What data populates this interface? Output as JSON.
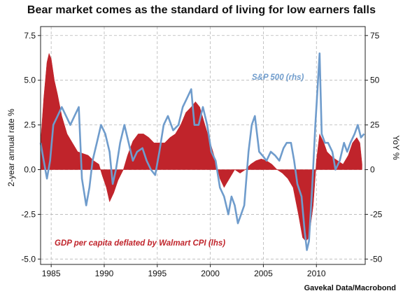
{
  "title": "Bear market comes as the standard of living for low earners falls",
  "source": "Gavekal Data/Macrobond",
  "chart_data": {
    "type": "area",
    "x_ticks": [
      "1985",
      "1990",
      "1995",
      "2000",
      "2005",
      "2010"
    ],
    "x_tick_values": [
      1985,
      1990,
      1995,
      2000,
      2005,
      2010
    ],
    "xlim": [
      1984,
      2014.6
    ],
    "left_axis": {
      "label": "2-year annual rate %",
      "ylim": [
        -5.3,
        8.0
      ],
      "ticks": [
        "7.5",
        "5.0",
        "2.5",
        "0.0",
        "-2.5",
        "-5.0"
      ],
      "tick_values": [
        7.5,
        5.0,
        2.5,
        0.0,
        -2.5,
        -5.0
      ]
    },
    "right_axis": {
      "label": "YoY %",
      "ylim": [
        -53,
        80
      ],
      "ticks": [
        "75",
        "50",
        "25",
        "0",
        "-25",
        "-50"
      ],
      "tick_values": [
        75,
        50,
        25,
        0,
        -25,
        -50
      ]
    },
    "grid": true,
    "series": [
      {
        "name": "GDP per capita deflated by Walmart CPI (lhs)",
        "type": "area",
        "axis": "left",
        "color": "#c0242b",
        "points": [
          [
            1984.0,
            1.5
          ],
          [
            1984.3,
            4.0
          ],
          [
            1984.6,
            6.0
          ],
          [
            1984.8,
            6.5
          ],
          [
            1985.0,
            6.2
          ],
          [
            1985.3,
            5.0
          ],
          [
            1985.6,
            4.2
          ],
          [
            1986.0,
            3.0
          ],
          [
            1986.5,
            2.0
          ],
          [
            1987.0,
            1.5
          ],
          [
            1987.5,
            1.0
          ],
          [
            1988.0,
            0.9
          ],
          [
            1988.5,
            0.8
          ],
          [
            1989.0,
            0.5
          ],
          [
            1989.5,
            0.3
          ],
          [
            1989.8,
            -0.3
          ],
          [
            1990.2,
            -1.0
          ],
          [
            1990.5,
            -1.8
          ],
          [
            1990.9,
            -1.3
          ],
          [
            1991.3,
            -0.6
          ],
          [
            1991.8,
            0.0
          ],
          [
            1992.2,
            0.8
          ],
          [
            1992.7,
            1.6
          ],
          [
            1993.2,
            2.0
          ],
          [
            1993.7,
            2.0
          ],
          [
            1994.2,
            1.8
          ],
          [
            1994.7,
            1.5
          ],
          [
            1995.2,
            1.5
          ],
          [
            1995.7,
            1.5
          ],
          [
            1996.2,
            1.8
          ],
          [
            1996.7,
            2.0
          ],
          [
            1997.2,
            2.5
          ],
          [
            1997.7,
            3.2
          ],
          [
            1998.2,
            3.5
          ],
          [
            1998.6,
            3.8
          ],
          [
            1999.0,
            3.5
          ],
          [
            1999.5,
            2.5
          ],
          [
            2000.0,
            1.5
          ],
          [
            2000.5,
            0.5
          ],
          [
            2000.9,
            -0.5
          ],
          [
            2001.3,
            -1.0
          ],
          [
            2001.8,
            -0.5
          ],
          [
            2002.3,
            0.0
          ],
          [
            2002.8,
            -0.2
          ],
          [
            2003.3,
            0.0
          ],
          [
            2003.8,
            0.3
          ],
          [
            2004.3,
            0.5
          ],
          [
            2004.8,
            0.6
          ],
          [
            2005.3,
            0.5
          ],
          [
            2005.8,
            0.3
          ],
          [
            2006.3,
            0.0
          ],
          [
            2006.8,
            -0.2
          ],
          [
            2007.3,
            -0.5
          ],
          [
            2007.8,
            -1.0
          ],
          [
            2008.3,
            -2.5
          ],
          [
            2008.7,
            -3.8
          ],
          [
            2009.0,
            -4.0
          ],
          [
            2009.3,
            -3.8
          ],
          [
            2009.7,
            -2.0
          ],
          [
            2010.0,
            0.5
          ],
          [
            2010.3,
            2.0
          ],
          [
            2010.7,
            1.5
          ],
          [
            2011.0,
            1.0
          ],
          [
            2011.5,
            0.7
          ],
          [
            2012.0,
            0.5
          ],
          [
            2012.5,
            0.3
          ],
          [
            2013.0,
            0.8
          ],
          [
            2013.4,
            1.5
          ],
          [
            2013.8,
            1.8
          ],
          [
            2014.1,
            1.5
          ],
          [
            2014.3,
            0.3
          ]
        ]
      },
      {
        "name": "S&P 500 (rhs)",
        "type": "line",
        "axis": "right",
        "color": "#6f9ccc",
        "points": [
          [
            1984.0,
            15
          ],
          [
            1984.3,
            5
          ],
          [
            1984.6,
            -5
          ],
          [
            1984.9,
            5
          ],
          [
            1985.2,
            25
          ],
          [
            1985.6,
            30
          ],
          [
            1986.0,
            35
          ],
          [
            1986.4,
            30
          ],
          [
            1986.8,
            25
          ],
          [
            1987.2,
            30
          ],
          [
            1987.6,
            35
          ],
          [
            1987.9,
            -5
          ],
          [
            1988.3,
            -20
          ],
          [
            1988.6,
            -10
          ],
          [
            1988.9,
            5
          ],
          [
            1989.3,
            15
          ],
          [
            1989.7,
            25
          ],
          [
            1990.1,
            20
          ],
          [
            1990.5,
            10
          ],
          [
            1990.8,
            -8
          ],
          [
            1991.1,
            0
          ],
          [
            1991.5,
            15
          ],
          [
            1991.9,
            25
          ],
          [
            1992.3,
            15
          ],
          [
            1992.7,
            5
          ],
          [
            1993.1,
            10
          ],
          [
            1993.6,
            12
          ],
          [
            1994.0,
            5
          ],
          [
            1994.4,
            0
          ],
          [
            1994.8,
            -3
          ],
          [
            1995.2,
            10
          ],
          [
            1995.6,
            25
          ],
          [
            1996.0,
            30
          ],
          [
            1996.5,
            22
          ],
          [
            1997.0,
            25
          ],
          [
            1997.4,
            35
          ],
          [
            1997.8,
            40
          ],
          [
            1998.2,
            45
          ],
          [
            1998.5,
            25
          ],
          [
            1998.9,
            25
          ],
          [
            1999.3,
            35
          ],
          [
            1999.7,
            25
          ],
          [
            2000.1,
            10
          ],
          [
            2000.5,
            5
          ],
          [
            2000.9,
            -10
          ],
          [
            2001.3,
            -15
          ],
          [
            2001.7,
            -25
          ],
          [
            2002.0,
            -15
          ],
          [
            2002.3,
            -20
          ],
          [
            2002.6,
            -30
          ],
          [
            2002.9,
            -25
          ],
          [
            2003.2,
            -20
          ],
          [
            2003.6,
            10
          ],
          [
            2003.9,
            25
          ],
          [
            2004.2,
            30
          ],
          [
            2004.6,
            10
          ],
          [
            2004.9,
            8
          ],
          [
            2005.3,
            5
          ],
          [
            2005.7,
            10
          ],
          [
            2006.1,
            8
          ],
          [
            2006.5,
            5
          ],
          [
            2006.9,
            12
          ],
          [
            2007.2,
            15
          ],
          [
            2007.6,
            15
          ],
          [
            2007.9,
            5
          ],
          [
            2008.2,
            -8
          ],
          [
            2008.6,
            -15
          ],
          [
            2008.9,
            -35
          ],
          [
            2009.1,
            -45
          ],
          [
            2009.3,
            -40
          ],
          [
            2009.6,
            -10
          ],
          [
            2009.9,
            25
          ],
          [
            2010.1,
            45
          ],
          [
            2010.3,
            65
          ],
          [
            2010.5,
            20
          ],
          [
            2010.8,
            15
          ],
          [
            2011.1,
            15
          ],
          [
            2011.5,
            10
          ],
          [
            2011.8,
            0
          ],
          [
            2012.2,
            5
          ],
          [
            2012.6,
            15
          ],
          [
            2012.9,
            10
          ],
          [
            2013.2,
            15
          ],
          [
            2013.6,
            20
          ],
          [
            2013.9,
            25
          ],
          [
            2014.2,
            18
          ],
          [
            2014.5,
            20
          ]
        ]
      }
    ],
    "annotations": [
      {
        "text": "S&P 500 (rhs)",
        "color": "#6f9ccc"
      },
      {
        "text": "GDP per capita deflated by Walmart CPI (lhs)",
        "color": "#c0242b"
      }
    ]
  }
}
